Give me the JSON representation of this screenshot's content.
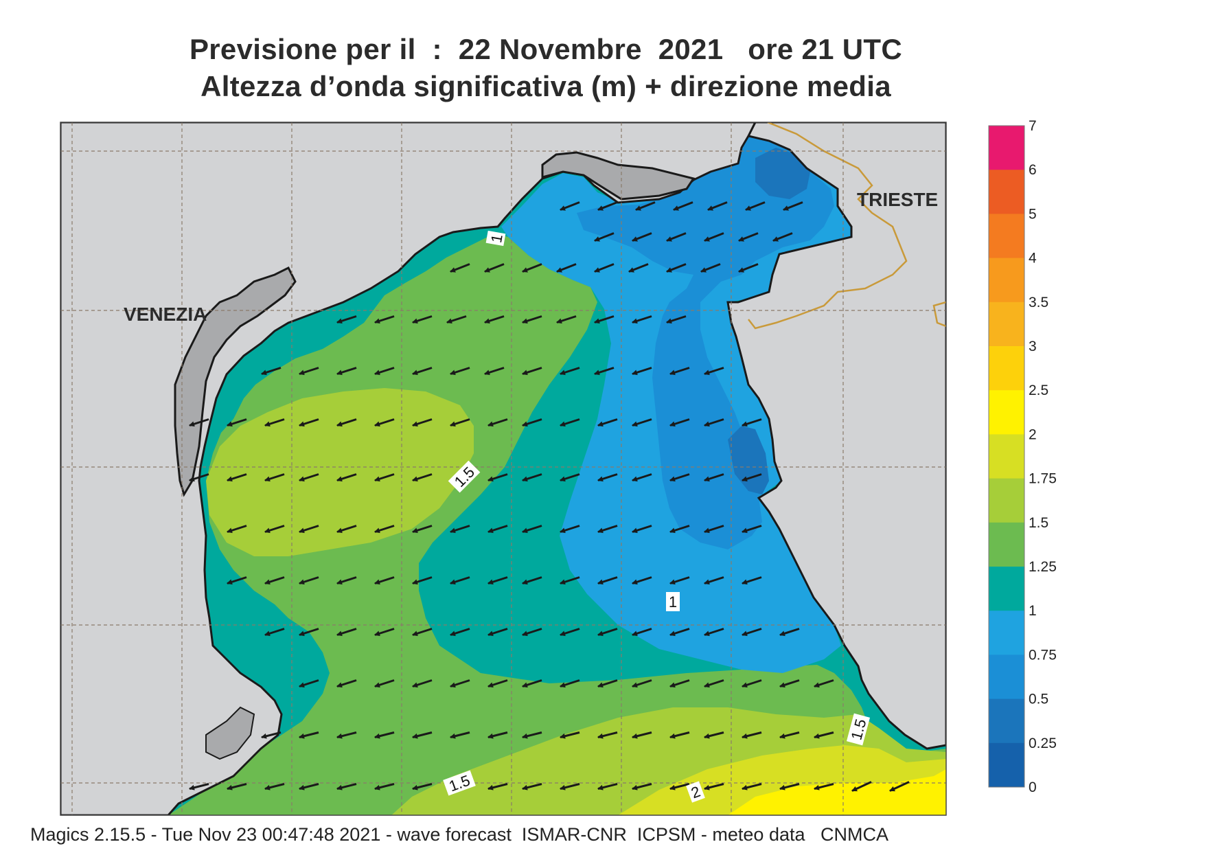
{
  "header": {
    "title_line1": "Previsione per il  :  22 Novembre  2021   ore 21 UTC",
    "title_line2": "Altezza d’onda significativa (m) + direzione media"
  },
  "map": {
    "cities": [
      {
        "name": "VENEZIA"
      },
      {
        "name": "TRIESTE"
      }
    ],
    "contour_labels": [
      "1",
      "1",
      "1.5",
      "1.5",
      "1.5",
      "2"
    ],
    "land_color": "#d2d3d5",
    "coast_color": "#1a1a1a",
    "border_color": "#c99a3a",
    "grid_color": "#8a7a6a",
    "arrow_color": "#1a1a1a",
    "wave_direction": "toward south-west"
  },
  "colorbar": {
    "levels": [
      {
        "label": "7",
        "color": "#e8196e"
      },
      {
        "label": "6",
        "color": "#e5262b"
      },
      {
        "label": "5",
        "color": "#ec5c23"
      },
      {
        "label": "4",
        "color": "#f47b20"
      },
      {
        "label": "3.5",
        "color": "#f79a1d"
      },
      {
        "label": "3",
        "color": "#f8b31d"
      },
      {
        "label": "2.5",
        "color": "#fdd10b"
      },
      {
        "label": "2",
        "color": "#fff200"
      },
      {
        "label": "1.75",
        "color": "#d7df23"
      },
      {
        "label": "1.5",
        "color": "#a6ce39"
      },
      {
        "label": "1.25",
        "color": "#6cbb50"
      },
      {
        "label": "1",
        "color": "#00a99d"
      },
      {
        "label": "0.75",
        "color": "#1fa3e0"
      },
      {
        "label": "0.5",
        "color": "#1b8fd6"
      },
      {
        "label": "0.25",
        "color": "#1b75bb"
      },
      {
        "label": "0",
        "color": "#1561ab"
      }
    ]
  },
  "footer": {
    "text": "Magics 2.15.5 - Tue Nov 23 00:47:48 2021 - wave forecast  ISMAR-CNR  ICPSM - meteo data   CNMCA"
  }
}
